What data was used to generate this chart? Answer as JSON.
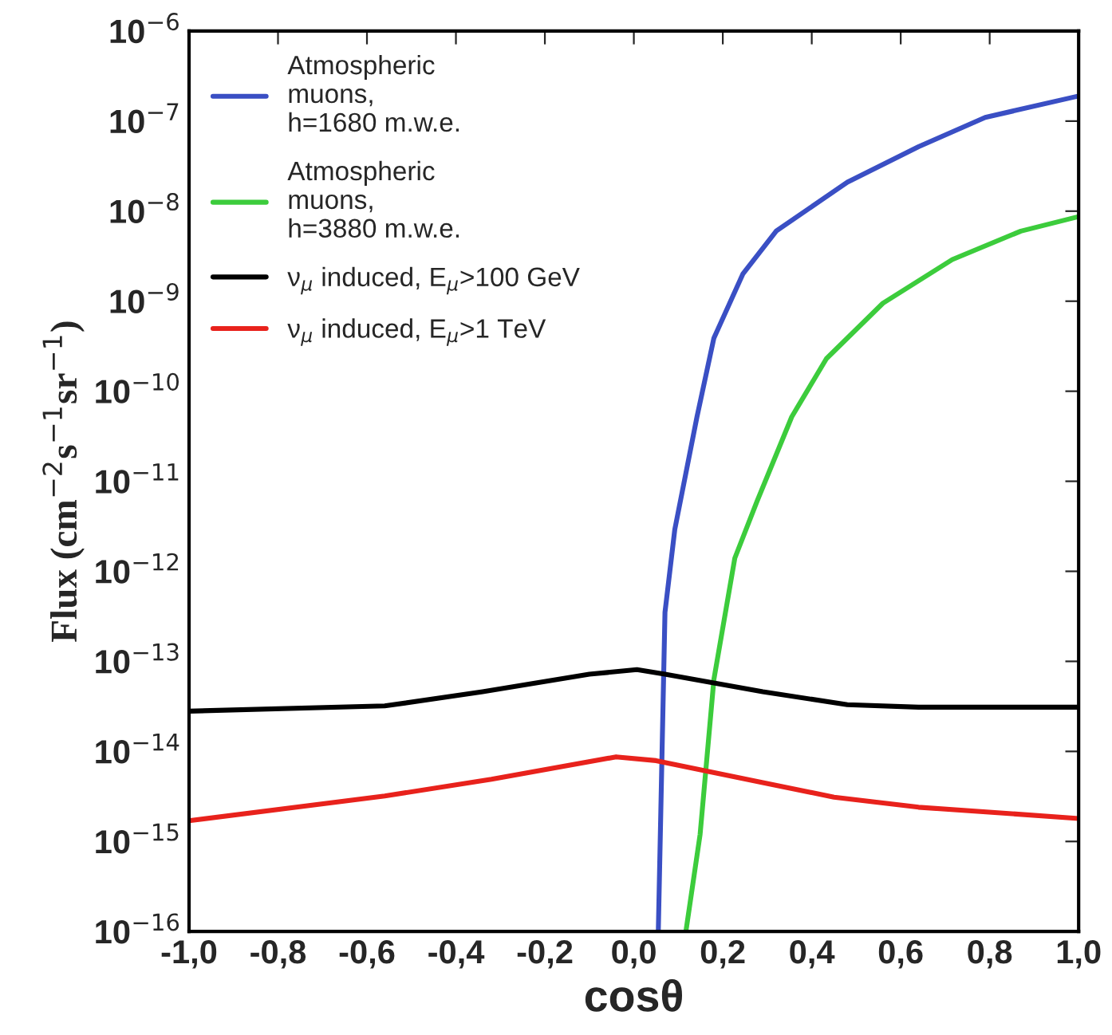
{
  "chart_data": {
    "type": "line",
    "xlabel": "cosθ",
    "ylabel": "Flux (cm$^{−2}$s$^{−1}$sr$^{−1}$)",
    "log": "y",
    "legend": "top left",
    "grid": false,
    "xlim": [
      -1.0,
      1.0
    ],
    "xticks": [
      {
        "value": -1.0,
        "label": "-1,0"
      },
      {
        "value": -0.8,
        "label": "-0,8"
      },
      {
        "value": -0.6,
        "label": "-0,6"
      },
      {
        "value": -0.4,
        "label": "-0,4"
      },
      {
        "value": -0.2,
        "label": "-0,2"
      },
      {
        "value": 0.0,
        "label": "0,0"
      },
      {
        "value": 0.2,
        "label": "0,2"
      },
      {
        "value": 0.4,
        "label": "0,4"
      },
      {
        "value": 0.6,
        "label": "0,6"
      },
      {
        "value": 0.8,
        "label": "0,8"
      },
      {
        "value": 1.0,
        "label": "1,0"
      }
    ],
    "ylim": [
      1e-16,
      1e-06
    ],
    "yticks": [
      {
        "value": 1e-16,
        "label": "10$^{−16}$"
      },
      {
        "value": 1e-15,
        "label": "10$^{−15}$"
      },
      {
        "value": 1e-14,
        "label": "10$^{−14}$"
      },
      {
        "value": 1e-13,
        "label": "10$^{−13}$"
      },
      {
        "value": 1e-12,
        "label": "10$^{−12}$"
      },
      {
        "value": 1e-11,
        "label": "10$^{−11}$"
      },
      {
        "value": 1e-10,
        "label": "10$^{−10}$"
      },
      {
        "value": 1e-09,
        "label": "10$^{−9}$"
      },
      {
        "value": 1e-08,
        "label": "10$^{−8}$"
      },
      {
        "value": 1e-07,
        "label": "10$^{−7}$"
      },
      {
        "value": 1e-06,
        "label": "10$^{−6}$"
      }
    ],
    "series": [
      {
        "name": "Atmospheric\nmuons,\nh=1680 m.w.e.",
        "color": "#3a4fc4",
        "x": [
          0.055,
          0.07,
          0.092,
          0.142,
          0.18,
          0.245,
          0.32,
          0.48,
          0.64,
          0.79,
          1.0
        ],
        "values": [
          1e-16,
          3.5e-13,
          2.9e-12,
          5.2e-11,
          3.9e-10,
          2e-09,
          6e-09,
          2.1e-08,
          5.2e-08,
          1.1e-07,
          1.9e-07
        ]
      },
      {
        "name": "Atmospheric\nmuons,\nh=3880 m.w.e.",
        "color": "#3ccc3c",
        "x": [
          0.117,
          0.149,
          0.18,
          0.227,
          0.277,
          0.355,
          0.433,
          0.56,
          0.716,
          0.87,
          1.0
        ],
        "values": [
          1e-16,
          1.2e-15,
          6.3e-14,
          1.4e-12,
          6e-12,
          5.2e-11,
          2.3e-10,
          9.5e-10,
          2.9e-09,
          6e-09,
          8.7e-09
        ]
      },
      {
        "name": "ν$_{μ}$ induced, E$_{μ}$>100 GeV",
        "color": "#000000",
        "x": [
          -1.0,
          -0.56,
          -0.34,
          -0.1,
          0.007,
          0.07,
          0.29,
          0.48,
          0.64,
          1.0
        ],
        "values": [
          2.8e-14,
          3.2e-14,
          4.6e-14,
          7.2e-14,
          8.1e-14,
          7.2e-14,
          4.6e-14,
          3.3e-14,
          3.1e-14,
          3.1e-14
        ]
      },
      {
        "name": "ν$_{μ}$ induced, E$_{μ}$>1 TeV",
        "color": "#e8221c",
        "x": [
          -1.0,
          -0.56,
          -0.32,
          -0.04,
          0.05,
          0.29,
          0.45,
          0.64,
          1.0
        ],
        "values": [
          1.7e-15,
          3.2e-15,
          4.9e-15,
          8.7e-15,
          7.9e-15,
          4.5e-15,
          3.1e-15,
          2.4e-15,
          1.8e-15
        ]
      }
    ]
  }
}
